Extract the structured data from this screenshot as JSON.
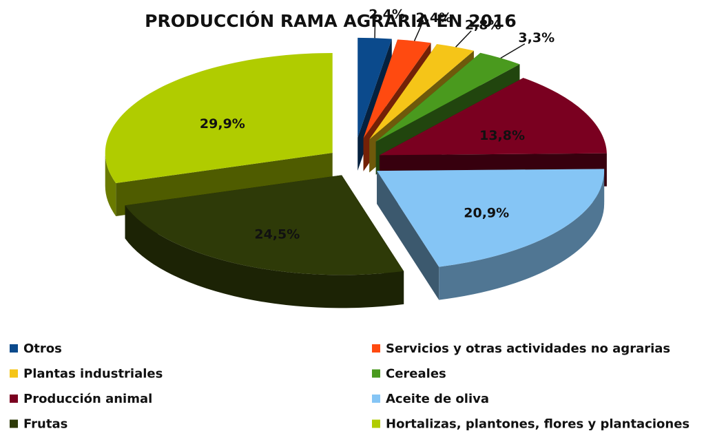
{
  "chart_data": {
    "type": "pie",
    "title": "PRODUCCIÓN RAMA AGRARIA EN 2016",
    "categories": [
      "Otros",
      "Servicios y otras actividades no agrarias",
      "Plantas industriales",
      "Cereales",
      "Producción animal",
      "Aceite de oliva",
      "Frutas",
      "Hortalizas, plantones, flores y plantaciones"
    ],
    "values": [
      2.4,
      2.4,
      2.8,
      3.3,
      13.8,
      20.9,
      24.5,
      29.9
    ],
    "value_labels": [
      "2,4%",
      "2,4%",
      "2,8%",
      "3,3%",
      "13,8%",
      "20,9%",
      "24,5%",
      "29,9%"
    ],
    "colors": [
      "#0b4a8c",
      "#ff4a10",
      "#f5c518",
      "#4a9a1e",
      "#7a0020",
      "#85c5f5",
      "#2e3a08",
      "#b0cc00"
    ],
    "legend": "bottom"
  }
}
